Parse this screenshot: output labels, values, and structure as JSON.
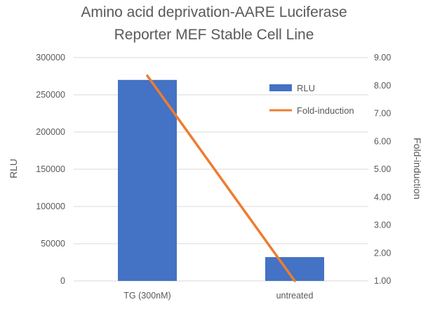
{
  "chart_data": {
    "type": "bar",
    "title_lines": [
      "Amino acid deprivation-AARE Luciferase",
      "Reporter MEF Stable Cell Line"
    ],
    "categories": [
      "TG (300nM)",
      "untreated"
    ],
    "series": [
      {
        "name": "RLU",
        "type": "bar",
        "axis": "left",
        "color": "#4472C4",
        "values": [
          270000,
          32000
        ]
      },
      {
        "name": "Fold-induction",
        "type": "line",
        "axis": "right",
        "color": "#ED7D31",
        "values": [
          8.35,
          1.0
        ]
      }
    ],
    "ylabel": "RLU",
    "y2label": "Fold-induction",
    "ylim": [
      0,
      300000
    ],
    "y2lim": [
      1.0,
      9.0
    ],
    "yticks": [
      "0",
      "50000",
      "100000",
      "150000",
      "200000",
      "250000",
      "300000"
    ],
    "y2ticks": [
      "1.00",
      "2.00",
      "3.00",
      "4.00",
      "5.00",
      "6.00",
      "7.00",
      "8.00",
      "9.00"
    ],
    "grid": true,
    "legend_position": "top-right"
  }
}
